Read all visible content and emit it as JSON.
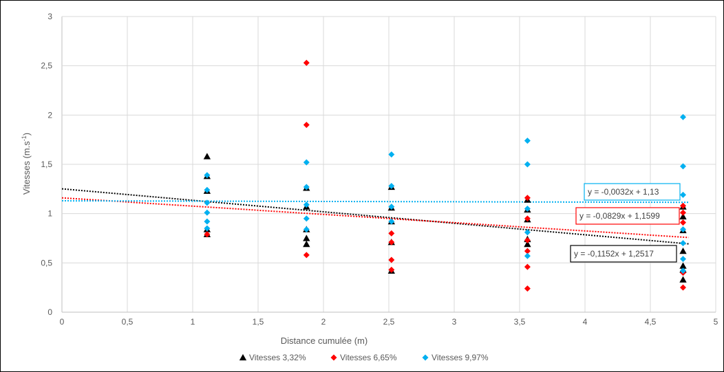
{
  "chart_data": {
    "type": "scatter",
    "xlabel": "Distance cumulée (m)",
    "ylabel": "Vitesses (m.s-1)",
    "ylabel_main": "Vitesses (m.s",
    "ylabel_sup": "-1",
    "ylabel_close": ")",
    "xlim": [
      0,
      5
    ],
    "ylim": [
      0,
      3
    ],
    "x_ticks": [
      "0",
      "0,5",
      "1",
      "1,5",
      "2",
      "2,5",
      "3",
      "3,5",
      "4",
      "4,5",
      "5"
    ],
    "y_ticks": [
      "0",
      "0,5",
      "1",
      "1,5",
      "2",
      "2,5",
      "3"
    ],
    "grid": true,
    "legend_position": "bottom",
    "series": [
      {
        "name": "Vitesses 3,32%",
        "color": "#000000",
        "marker": "triangle",
        "points": [
          [
            1.11,
            1.58
          ],
          [
            1.11,
            1.38
          ],
          [
            1.11,
            1.23
          ],
          [
            1.11,
            0.84
          ],
          [
            1.11,
            0.79
          ],
          [
            1.87,
            1.26
          ],
          [
            1.87,
            1.07
          ],
          [
            1.87,
            0.84
          ],
          [
            1.87,
            0.75
          ],
          [
            1.87,
            0.69
          ],
          [
            2.52,
            1.27
          ],
          [
            2.52,
            1.06
          ],
          [
            2.52,
            0.92
          ],
          [
            2.52,
            0.71
          ],
          [
            2.52,
            0.42
          ],
          [
            3.56,
            1.14
          ],
          [
            3.56,
            1.04
          ],
          [
            3.56,
            0.94
          ],
          [
            3.56,
            0.74
          ],
          [
            3.56,
            0.69
          ],
          [
            4.75,
            1.07
          ],
          [
            4.75,
            0.97
          ],
          [
            4.75,
            0.83
          ],
          [
            4.75,
            0.62
          ],
          [
            4.75,
            0.47
          ],
          [
            4.75,
            0.43
          ],
          [
            4.75,
            0.33
          ]
        ],
        "trend_equation": "y = -0,1152x + 1,2517",
        "trend_slope": -0.1152,
        "trend_intercept": 1.2517
      },
      {
        "name": "Vitesses 6,65%",
        "color": "#ff0000",
        "marker": "diamond",
        "points": [
          [
            1.11,
            0.79
          ],
          [
            1.87,
            2.53
          ],
          [
            1.87,
            1.9
          ],
          [
            1.87,
            0.58
          ],
          [
            2.52,
            0.8
          ],
          [
            2.52,
            0.71
          ],
          [
            2.52,
            0.53
          ],
          [
            2.52,
            0.43
          ],
          [
            3.56,
            1.16
          ],
          [
            3.56,
            0.95
          ],
          [
            3.56,
            0.73
          ],
          [
            3.56,
            0.62
          ],
          [
            3.56,
            0.46
          ],
          [
            3.56,
            0.24
          ],
          [
            4.75,
            1.08
          ],
          [
            4.75,
            1.01
          ],
          [
            4.75,
            0.91
          ],
          [
            4.75,
            0.4
          ],
          [
            4.75,
            0.25
          ]
        ],
        "trend_equation": "y = -0,0829x + 1,1599",
        "trend_slope": -0.0829,
        "trend_intercept": 1.1599
      },
      {
        "name": "Vitesses 9,97%",
        "color": "#00b0f0",
        "marker": "diamond",
        "points": [
          [
            1.11,
            1.39
          ],
          [
            1.11,
            1.24
          ],
          [
            1.11,
            1.11
          ],
          [
            1.11,
            1.01
          ],
          [
            1.11,
            0.92
          ],
          [
            1.11,
            0.85
          ],
          [
            1.87,
            1.52
          ],
          [
            1.87,
            1.27
          ],
          [
            1.87,
            1.09
          ],
          [
            1.87,
            0.95
          ],
          [
            1.87,
            0.84
          ],
          [
            2.52,
            1.6
          ],
          [
            2.52,
            1.28
          ],
          [
            2.52,
            1.07
          ],
          [
            2.52,
            0.92
          ],
          [
            3.56,
            1.74
          ],
          [
            3.56,
            1.5
          ],
          [
            3.56,
            1.05
          ],
          [
            3.56,
            0.81
          ],
          [
            3.56,
            0.57
          ],
          [
            4.75,
            1.98
          ],
          [
            4.75,
            1.48
          ],
          [
            4.75,
            1.19
          ],
          [
            4.75,
            0.84
          ],
          [
            4.75,
            0.7
          ],
          [
            4.75,
            0.54
          ],
          [
            4.75,
            0.42
          ]
        ],
        "trend_equation": "y = -0,0032x + 1,13",
        "trend_slope": -0.0032,
        "trend_intercept": 1.13
      }
    ]
  }
}
